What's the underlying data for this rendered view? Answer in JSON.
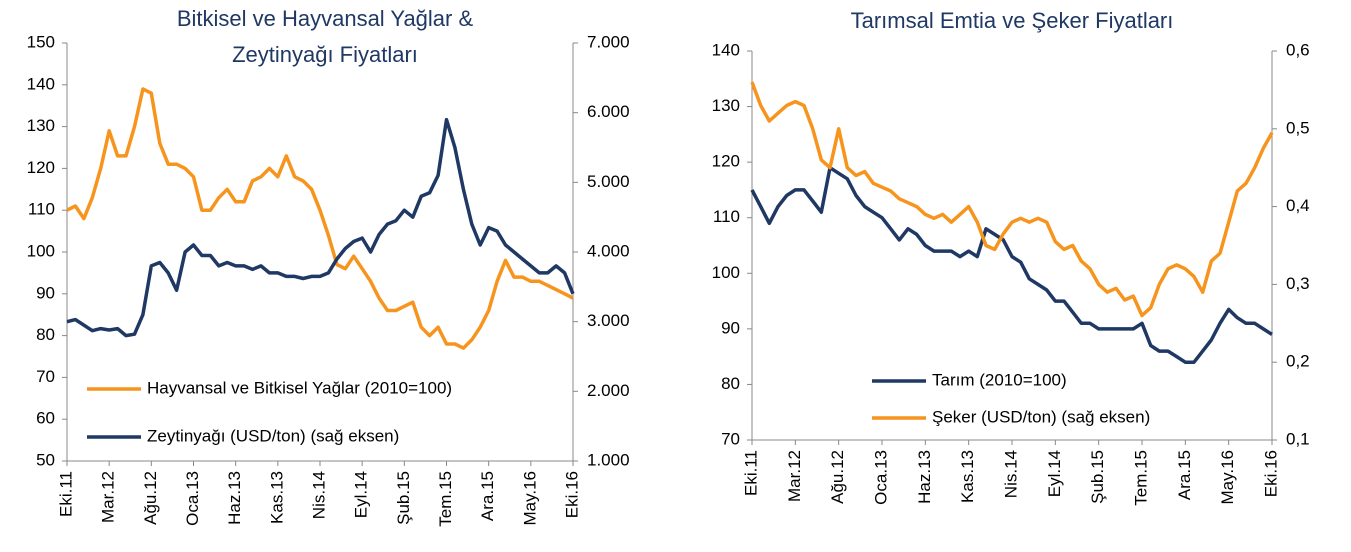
{
  "chart_data": [
    {
      "type": "line",
      "title": [
        "Bitkisel ve Hayvansal Yağlar &",
        "Zeytinyağı  Fiyatları"
      ],
      "categories": [
        "Eki.11",
        null,
        null,
        null,
        null,
        "Mar.12",
        null,
        null,
        null,
        null,
        "Ağu.12",
        null,
        null,
        null,
        null,
        "Oca.13",
        null,
        null,
        null,
        null,
        "Haz.13",
        null,
        null,
        null,
        null,
        "Kas.13",
        null,
        null,
        null,
        null,
        "Nis.14",
        null,
        null,
        null,
        null,
        "Eyl.14",
        null,
        null,
        null,
        null,
        "Şub.15",
        null,
        null,
        null,
        null,
        "Tem.15",
        null,
        null,
        null,
        null,
        "Ara.15",
        null,
        null,
        null,
        null,
        "May.16",
        null,
        null,
        null,
        null,
        "Eki.16"
      ],
      "ylim": [
        50,
        150
      ],
      "yticks": [
        50,
        60,
        70,
        80,
        90,
        100,
        110,
        120,
        130,
        140,
        150
      ],
      "y2lim": [
        1000,
        7000
      ],
      "y2ticks": [
        {
          "value": 1000,
          "label": "1.000"
        },
        {
          "value": 2000,
          "label": "2.000"
        },
        {
          "value": 3000,
          "label": "3.000"
        },
        {
          "value": 4000,
          "label": "4.000"
        },
        {
          "value": 5000,
          "label": "5.000"
        },
        {
          "value": 6000,
          "label": "6.000"
        },
        {
          "value": 7000,
          "label": "7.000"
        }
      ],
      "series": [
        {
          "name": "Hayvansal ve Bitkisel Yağlar (2010=100)",
          "color": "#f7941d",
          "values": [
            110,
            111,
            108,
            113,
            120,
            129,
            123,
            123,
            130,
            139,
            138,
            126,
            121,
            121,
            120,
            118,
            110,
            110,
            113,
            115,
            112,
            112,
            117,
            118,
            120,
            118,
            123,
            118,
            117,
            115,
            110,
            104,
            97,
            96,
            99,
            96,
            93,
            89,
            86,
            86,
            87,
            88,
            82,
            80,
            82,
            78,
            78,
            77,
            79,
            82,
            86,
            93,
            98,
            94,
            94,
            93,
            93,
            92,
            91,
            90,
            89
          ]
        },
        {
          "name": "Zeytinyağı (USD/ton) (sağ eksen)",
          "color": "#1f3864",
          "axis": "y2",
          "values": [
            3000,
            3030,
            2950,
            2870,
            2900,
            2880,
            2900,
            2800,
            2820,
            3100,
            3800,
            3850,
            3700,
            3450,
            4000,
            4100,
            3950,
            3950,
            3800,
            3850,
            3800,
            3800,
            3750,
            3800,
            3700,
            3700,
            3650,
            3650,
            3620,
            3650,
            3650,
            3700,
            3900,
            4050,
            4150,
            4200,
            4000,
            4250,
            4400,
            4450,
            4600,
            4500,
            4800,
            4850,
            5100,
            5900,
            5500,
            4900,
            4400,
            4100,
            4350,
            4300,
            4100,
            4000,
            3900,
            3800,
            3700,
            3700,
            3800,
            3700,
            3400
          ]
        }
      ]
    },
    {
      "type": "line",
      "title": [
        "Tarımsal Emtia ve Şeker Fiyatları"
      ],
      "categories": [
        "Eki.11",
        null,
        null,
        null,
        null,
        "Mar.12",
        null,
        null,
        null,
        null,
        "Ağu.12",
        null,
        null,
        null,
        null,
        "Oca.13",
        null,
        null,
        null,
        null,
        "Haz.13",
        null,
        null,
        null,
        null,
        "Kas.13",
        null,
        null,
        null,
        null,
        "Nis.14",
        null,
        null,
        null,
        null,
        "Eyl.14",
        null,
        null,
        null,
        null,
        "Şub.15",
        null,
        null,
        null,
        null,
        "Tem.15",
        null,
        null,
        null,
        null,
        "Ara.15",
        null,
        null,
        null,
        null,
        "May.16",
        null,
        null,
        null,
        null,
        "Eki.16"
      ],
      "ylim": [
        70,
        140
      ],
      "yticks": [
        70,
        80,
        90,
        100,
        110,
        120,
        130,
        140
      ],
      "y2lim": [
        0.1,
        0.6
      ],
      "y2ticks": [
        {
          "value": 0.1,
          "label": "0,1"
        },
        {
          "value": 0.2,
          "label": "0,2"
        },
        {
          "value": 0.3,
          "label": "0,3"
        },
        {
          "value": 0.4,
          "label": "0,4"
        },
        {
          "value": 0.5,
          "label": "0,5"
        },
        {
          "value": 0.6,
          "label": "0,6"
        }
      ],
      "series": [
        {
          "name": "Tarım (2010=100)",
          "color": "#1f3864",
          "values": [
            115,
            112,
            109,
            112,
            114,
            115,
            115,
            113,
            111,
            119,
            118,
            117,
            114,
            112,
            111,
            110,
            108,
            106,
            108,
            107,
            105,
            104,
            104,
            104,
            103,
            104,
            103,
            108,
            107,
            106,
            103,
            102,
            99,
            98,
            97,
            95,
            95,
            93,
            91,
            91,
            90,
            90,
            90,
            90,
            90,
            91,
            87,
            86,
            86,
            85,
            84,
            84,
            86,
            88,
            91,
            93.5,
            92,
            91,
            91,
            90,
            89
          ]
        },
        {
          "name": "Şeker (USD/ton) (sağ eksen)",
          "color": "#f7941d",
          "axis": "y2",
          "values": [
            0.56,
            0.53,
            0.51,
            0.52,
            0.53,
            0.535,
            0.53,
            0.5,
            0.46,
            0.45,
            0.5,
            0.45,
            0.44,
            0.445,
            0.43,
            0.425,
            0.42,
            0.41,
            0.405,
            0.4,
            0.39,
            0.385,
            0.39,
            0.38,
            0.39,
            0.4,
            0.38,
            0.35,
            0.345,
            0.365,
            0.38,
            0.385,
            0.38,
            0.385,
            0.38,
            0.355,
            0.345,
            0.35,
            0.33,
            0.32,
            0.3,
            0.29,
            0.295,
            0.28,
            0.285,
            0.26,
            0.27,
            0.3,
            0.32,
            0.325,
            0.32,
            0.31,
            0.29,
            0.33,
            0.34,
            0.38,
            0.42,
            0.43,
            0.45,
            0.475,
            0.495
          ]
        }
      ]
    }
  ]
}
